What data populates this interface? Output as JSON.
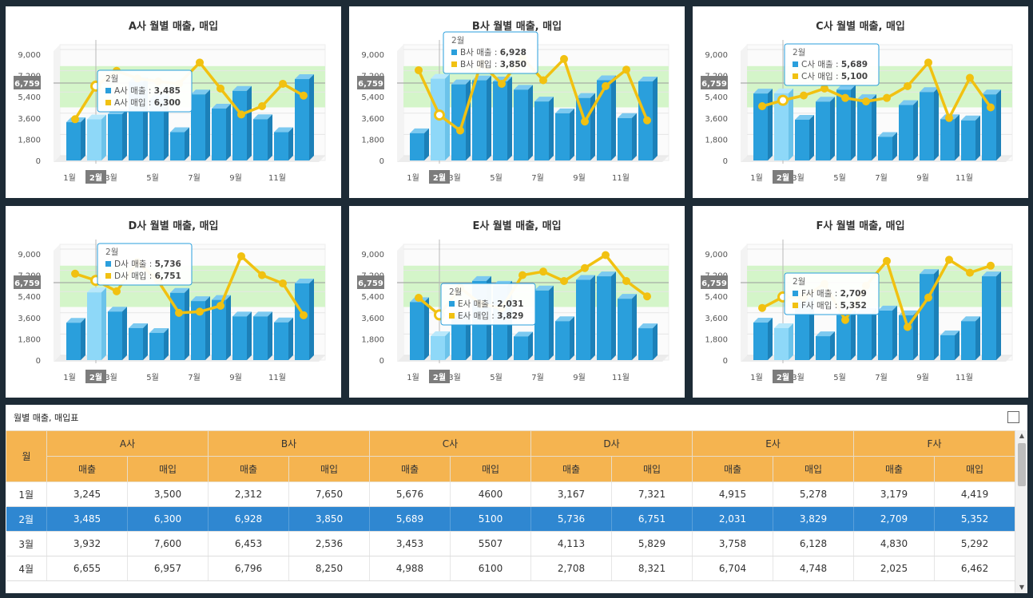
{
  "charts": [
    {
      "title": "A사 월별 매출, 매입",
      "company": "A사",
      "sales": [
        3245,
        3485,
        3932,
        6655,
        5200,
        2400,
        5600,
        4400,
        5900,
        3500,
        2400,
        6900
      ],
      "purchase": [
        3500,
        6300,
        7600,
        6957,
        6700,
        6500,
        8300,
        6100,
        3900,
        4600,
        6500,
        5500
      ],
      "highlight": 2
    },
    {
      "title": "B사 월별 매출, 매입",
      "company": "B사",
      "sales": [
        2312,
        6928,
        6453,
        6796,
        6700,
        6000,
        5000,
        4000,
        5300,
        6800,
        3600,
        6700
      ],
      "purchase": [
        7650,
        3850,
        2536,
        8250,
        6500,
        8700,
        6800,
        8600,
        3300,
        6300,
        7700,
        3400
      ],
      "highlight": 2
    },
    {
      "title": "C사 월별 매출, 매입",
      "company": "C사",
      "sales": [
        5676,
        5689,
        3453,
        4988,
        6000,
        5200,
        2000,
        4700,
        5800,
        3500,
        3400,
        5600
      ],
      "purchase": [
        4600,
        5100,
        5507,
        6100,
        5300,
        5000,
        5300,
        6300,
        8300,
        3600,
        7000,
        4500
      ],
      "highlight": 2
    },
    {
      "title": "D사 월별 매출, 매입",
      "company": "D사",
      "sales": [
        3167,
        5736,
        4113,
        2708,
        2300,
        5700,
        5000,
        5100,
        3700,
        3700,
        3200,
        6500
      ],
      "purchase": [
        7321,
        6751,
        5829,
        8321,
        6700,
        4000,
        4100,
        4600,
        8800,
        7200,
        6500,
        3800
      ],
      "highlight": 2
    },
    {
      "title": "E사 월별 매출, 매입",
      "company": "E사",
      "sales": [
        4915,
        2031,
        3758,
        6704,
        6300,
        2000,
        5900,
        3300,
        6800,
        7100,
        5200,
        2700
      ],
      "purchase": [
        5278,
        3829,
        6128,
        4748,
        4400,
        7200,
        7500,
        6700,
        7800,
        8900,
        6700,
        5400
      ],
      "highlight": 2
    },
    {
      "title": "F사 월별 매출, 매입",
      "company": "F사",
      "sales": [
        3179,
        2709,
        4830,
        2025,
        3800,
        4000,
        4200,
        3800,
        7300,
        2100,
        3300,
        7100
      ],
      "purchase": [
        4419,
        5352,
        5292,
        6462,
        3400,
        6300,
        8400,
        2800,
        5300,
        8500,
        7400,
        8000
      ],
      "highlight": 2
    }
  ],
  "chart_common": {
    "type": "bar+line",
    "y_ticks": [
      "0",
      "1,800",
      "3,600",
      "5,400",
      "7,200",
      "9,000"
    ],
    "ylim": [
      0,
      9000
    ],
    "x_ticks": [
      "1월",
      "3월",
      "5월",
      "7월",
      "9월",
      "11월"
    ],
    "marker_value": "6,759",
    "hover_month": "2월",
    "band": [
      4500,
      8000
    ],
    "sales_label": "매출",
    "purchase_label": "매입",
    "sales_color": "#2a9fdc",
    "purchase_color": "#f1c111",
    "band_color": "#d4f5c9"
  },
  "table": {
    "title": "월별 매출, 매입표",
    "month_header": "월",
    "companies": [
      "A사",
      "B사",
      "C사",
      "D사",
      "E사",
      "F사"
    ],
    "sub_headers": [
      "매출",
      "매입"
    ],
    "selected_row": 1,
    "rows": [
      {
        "month": "1월",
        "vals": [
          "3,245",
          "3,500",
          "2,312",
          "7,650",
          "5,676",
          "4600",
          "3,167",
          "7,321",
          "4,915",
          "5,278",
          "3,179",
          "4,419"
        ]
      },
      {
        "month": "2월",
        "vals": [
          "3,485",
          "6,300",
          "6,928",
          "3,850",
          "5,689",
          "5100",
          "5,736",
          "6,751",
          "2,031",
          "3,829",
          "2,709",
          "5,352"
        ]
      },
      {
        "month": "3월",
        "vals": [
          "3,932",
          "7,600",
          "6,453",
          "2,536",
          "3,453",
          "5507",
          "4,113",
          "5,829",
          "3,758",
          "6,128",
          "4,830",
          "5,292"
        ]
      },
      {
        "month": "4월",
        "vals": [
          "6,655",
          "6,957",
          "6,796",
          "8,250",
          "4,988",
          "6100",
          "2,708",
          "8,321",
          "6,704",
          "4,748",
          "2,025",
          "6,462"
        ]
      }
    ]
  }
}
